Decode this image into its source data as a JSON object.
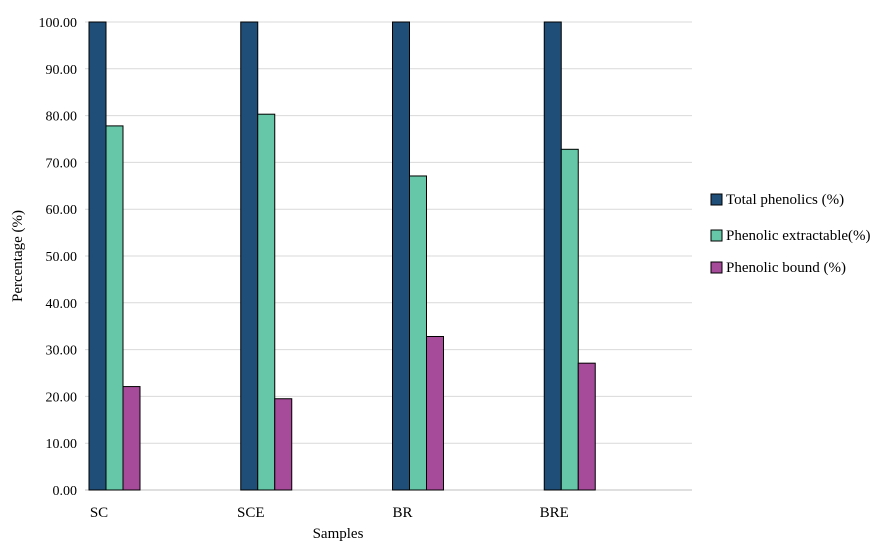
{
  "chart_data": {
    "type": "bar",
    "categories": [
      "SC",
      "SCE",
      "BR",
      "BRE"
    ],
    "series": [
      {
        "name": "Total phenolics (%)",
        "values": [
          100.0,
          100.0,
          100.0,
          100.0
        ],
        "color": "#1f4e79"
      },
      {
        "name": "Phenolic extractable(%)",
        "values": [
          77.8,
          80.3,
          67.1,
          72.8
        ],
        "color": "#66c7a8"
      },
      {
        "name": "Phenolic bound (%)",
        "values": [
          22.1,
          19.5,
          32.8,
          27.1
        ],
        "color": "#a64b9a"
      }
    ],
    "xlabel": "Samples",
    "ylabel": "Percentage (%)",
    "ylim": [
      0,
      100
    ],
    "yticks": [
      "0.00",
      "10.00",
      "20.00",
      "30.00",
      "40.00",
      "50.00",
      "60.00",
      "70.00",
      "80.00",
      "90.00",
      "100.00"
    ],
    "grid": true,
    "legend_position": "right"
  }
}
